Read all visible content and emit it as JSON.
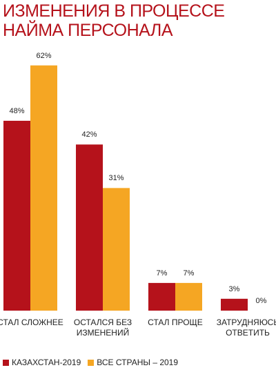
{
  "chart_data": {
    "type": "bar",
    "title": "ИЗМЕНЕНИЯ В ПРОЦЕССЕ НАЙМА ПЕРСОНАЛА",
    "categories": [
      "СТАЛ СЛОЖНЕЕ",
      "ОСТАЛСЯ БЕЗ ИЗМЕНЕНИЙ",
      "СТАЛ ПРОЩЕ",
      "ЗАТРУДНЯЮСЬ ОТВЕТИТЬ"
    ],
    "series": [
      {
        "name": "КАЗАХСТАН-2019",
        "color": "#b5121b",
        "values": [
          48,
          42,
          7,
          3
        ],
        "value_labels": [
          "48%",
          "42%",
          "7%",
          "3%"
        ]
      },
      {
        "name": "ВСЕ СТРАНЫ – 2019",
        "color": "#f5a623",
        "values": [
          62,
          31,
          7,
          0
        ],
        "value_labels": [
          "62%",
          "31%",
          "7%",
          "0%"
        ]
      }
    ]
  }
}
